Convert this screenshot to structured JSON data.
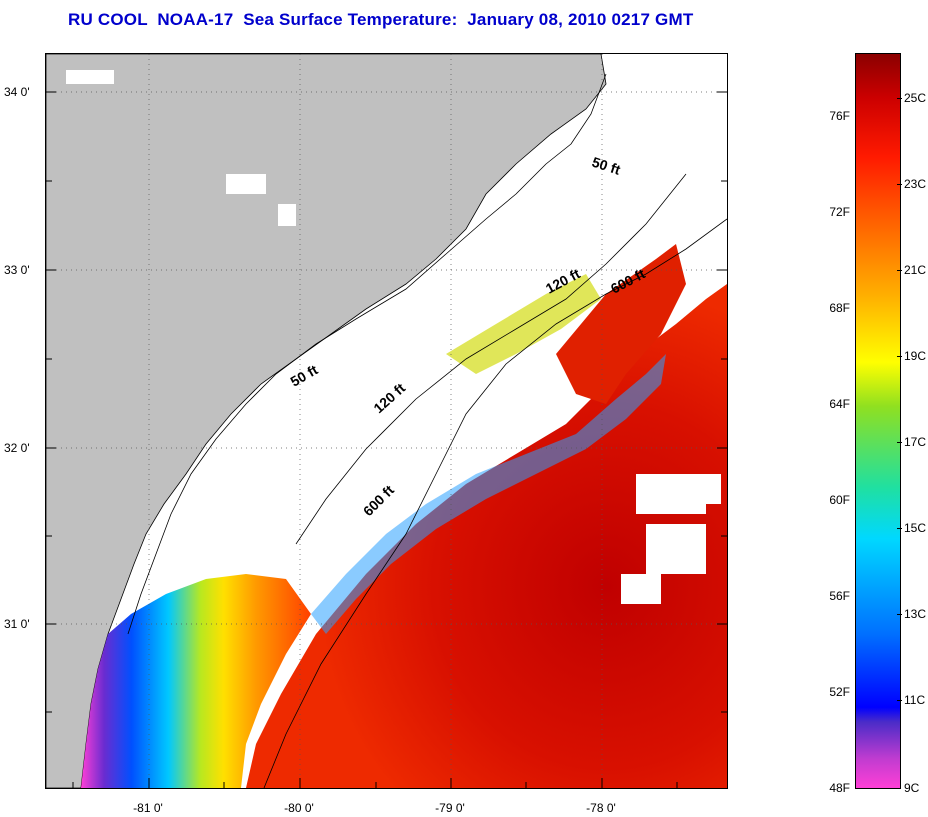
{
  "title": "RU COOL  NOAA-17  Sea Surface Temperature:  January 08, 2010 0217 GMT",
  "map": {
    "lat_labels": [
      "34 0'",
      "33 0'",
      "32 0'",
      "31 0'"
    ],
    "lon_labels": [
      "-81 0'",
      "-80 0'",
      "-79 0'",
      "-78 0'"
    ],
    "contour_labels": [
      "50 ft",
      "120 ft",
      "600 ft",
      "50 ft",
      "120 ft",
      "600 ft"
    ],
    "land_color": "#c0c0c0",
    "cloud_color": "#ffffff"
  },
  "colorbar": {
    "fahrenheit_labels": [
      "76F",
      "72F",
      "68F",
      "64F",
      "60F",
      "56F",
      "52F",
      "48F"
    ],
    "celsius_labels": [
      "25C",
      "23C",
      "21C",
      "19C",
      "17C",
      "15C",
      "13C",
      "11C",
      "9C"
    ]
  }
}
